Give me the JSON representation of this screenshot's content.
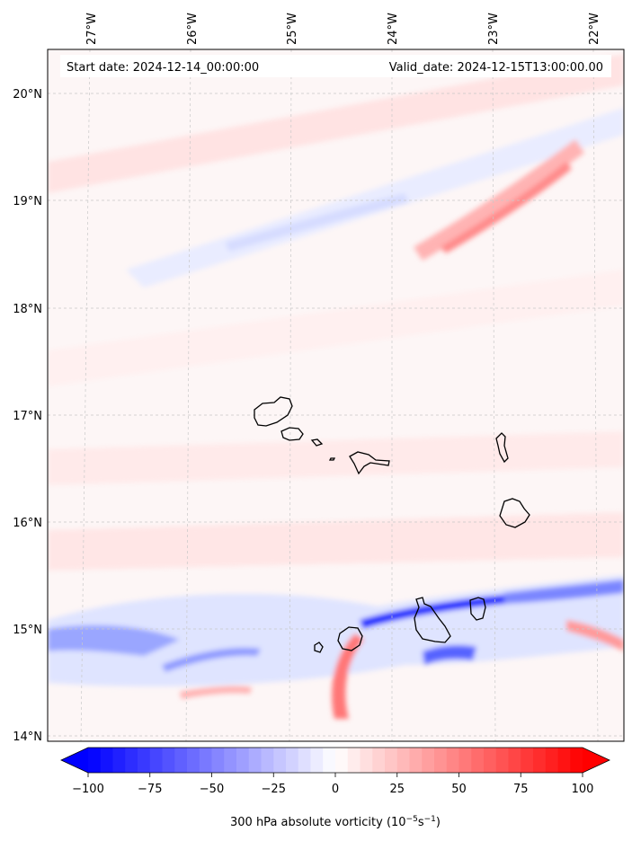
{
  "header": {
    "start_date": "Start date: 2024-12-14_00:00:00",
    "valid_date": "Valid_date: 2024-12-15T13:00:00.00"
  },
  "map": {
    "lon_labels": [
      "27°W",
      "26°W",
      "25°W",
      "24°W",
      "23°W",
      "22°W"
    ],
    "lat_labels": [
      "20°N",
      "19°N",
      "18°N",
      "17°N",
      "16°N",
      "15°N",
      "14°N"
    ],
    "gridlines": "dashed",
    "field": "300 hPa absolute vorticity"
  },
  "colorbar": {
    "label_main": "300 hPa absolute vorticity (10",
    "label_exp1": "−5",
    "label_mid": "s",
    "label_exp2": "−1",
    "label_end": ")",
    "ticks": [
      "−100",
      "−75",
      "−50",
      "−25",
      "0",
      "25",
      "50",
      "75",
      "100"
    ],
    "range": [
      -100,
      100
    ],
    "extend": "both",
    "colormap": "bwr",
    "colors": {
      "min": "#0000ff",
      "mid": "#ffffff",
      "max": "#ff0000"
    }
  }
}
